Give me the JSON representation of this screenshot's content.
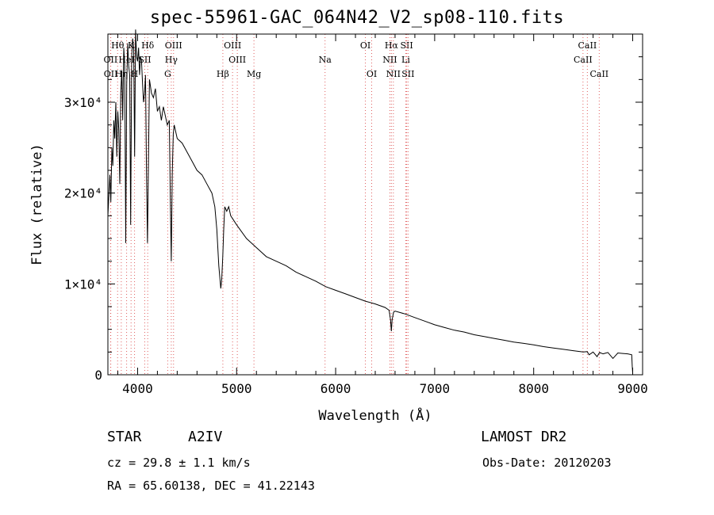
{
  "footer": {
    "object_type": "STAR",
    "object_class": "A2IV",
    "survey": "LAMOST DR2",
    "redshift": "cz = 29.8 ± 1.1 km/s",
    "obs_date": "Obs-Date: 20120203",
    "coords": "RA =  65.60138, DEC =  41.22143"
  },
  "colors": {
    "line_marker": "#e06060",
    "spectrum": "#000000",
    "axes": "#000000"
  },
  "chart_data": {
    "type": "line",
    "title": "spec-55961-GAC_064N42_V2_sp08-110.fits",
    "xlabel": "Wavelength (Å)",
    "ylabel": "Flux (relative)",
    "xlim": [
      3700,
      9100
    ],
    "ylim": [
      0,
      37500
    ],
    "x_ticks": [
      4000,
      5000,
      6000,
      7000,
      8000,
      9000
    ],
    "x_tick_labels": [
      "4000",
      "5000",
      "6000",
      "7000",
      "8000",
      "9000"
    ],
    "y_ticks": [
      0,
      10000,
      20000,
      30000
    ],
    "y_tick_labels": [
      "0",
      "1×10⁴",
      "2×10⁴",
      "3×10⁴"
    ],
    "grid": false,
    "series": [
      {
        "x": [
          3700,
          3720,
          3730,
          3740,
          3750,
          3760,
          3770,
          3780,
          3790,
          3800,
          3810,
          3820,
          3830,
          3840,
          3850,
          3860,
          3870,
          3880,
          3890,
          3900,
          3910,
          3920,
          3930,
          3940,
          3950,
          3960,
          3970,
          3980,
          3990,
          4000,
          4010,
          4020,
          4030,
          4040,
          4050,
          4060,
          4070,
          4080,
          4090,
          4100,
          4110,
          4120,
          4140,
          4160,
          4180,
          4200,
          4220,
          4240,
          4260,
          4280,
          4300,
          4320,
          4330,
          4340,
          4350,
          4360,
          4370,
          4400,
          4450,
          4500,
          4550,
          4600,
          4650,
          4700,
          4750,
          4780,
          4800,
          4820,
          4840,
          4850,
          4860,
          4870,
          4880,
          4900,
          4920,
          4940,
          5000,
          5100,
          5200,
          5300,
          5400,
          5500,
          5600,
          5700,
          5800,
          5900,
          6000,
          6100,
          6200,
          6300,
          6400,
          6500,
          6540,
          6555,
          6563,
          6570,
          6585,
          6600,
          6700,
          6800,
          6900,
          7000,
          7100,
          7200,
          7300,
          7400,
          7500,
          7600,
          7700,
          7800,
          7900,
          8000,
          8100,
          8200,
          8300,
          8400,
          8500,
          8540,
          8560,
          8600,
          8640,
          8665,
          8700,
          8750,
          8800,
          8850,
          8900,
          8950,
          8990,
          8995,
          9000
        ],
        "y": [
          17500,
          22000,
          19000,
          25000,
          23000,
          28000,
          26000,
          30000,
          24000,
          29000,
          27000,
          21000,
          31000,
          33500,
          28000,
          36000,
          34000,
          14500,
          32000,
          36500,
          34000,
          33000,
          16500,
          35000,
          37000,
          36000,
          24000,
          38000,
          35000,
          34500,
          36000,
          33000,
          35000,
          34500,
          32000,
          30000,
          31000,
          33000,
          22000,
          14500,
          24000,
          32500,
          31000,
          30500,
          31500,
          29000,
          29500,
          28000,
          29500,
          28500,
          27500,
          28000,
          20000,
          12500,
          22000,
          26500,
          27500,
          26000,
          25500,
          24500,
          23500,
          22500,
          22000,
          21000,
          20000,
          18500,
          16000,
          12000,
          9500,
          10500,
          13000,
          16000,
          18500,
          18000,
          18500,
          17500,
          16500,
          15000,
          14000,
          13000,
          12500,
          12000,
          11300,
          10800,
          10300,
          9700,
          9300,
          8900,
          8500,
          8100,
          7800,
          7400,
          7100,
          6000,
          4800,
          6000,
          6900,
          7000,
          6700,
          6300,
          5900,
          5500,
          5200,
          4900,
          4700,
          4400,
          4200,
          4000,
          3800,
          3600,
          3450,
          3300,
          3100,
          2950,
          2800,
          2650,
          2500,
          2550,
          2200,
          2500,
          2000,
          2450,
          2300,
          2450,
          1800,
          2400,
          2350,
          2300,
          2200,
          1000,
          200
        ]
      }
    ],
    "line_markers": [
      {
        "name": "Hθ",
        "wavelength": 3798,
        "row": 0
      },
      {
        "name": "K",
        "wavelength": 3934,
        "row": 0
      },
      {
        "name": "Hδ",
        "wavelength": 4102,
        "row": 0
      },
      {
        "name": "OIII",
        "wavelength": 4363,
        "row": 0
      },
      {
        "name": "OIII",
        "wavelength": 4959,
        "row": 0
      },
      {
        "name": "OI",
        "wavelength": 6300,
        "row": 0
      },
      {
        "name": "Hα",
        "wavelength": 6563,
        "row": 0
      },
      {
        "name": "SII",
        "wavelength": 6717,
        "row": 0
      },
      {
        "name": "CaII",
        "wavelength": 8542,
        "row": 0
      },
      {
        "name": "OII",
        "wavelength": 3727,
        "row": 1
      },
      {
        "name": "HeI",
        "wavelength": 3889,
        "row": 1
      },
      {
        "name": "SII",
        "wavelength": 4072,
        "row": 1
      },
      {
        "name": "Hγ",
        "wavelength": 4340,
        "row": 1
      },
      {
        "name": "OIII",
        "wavelength": 5007,
        "row": 1
      },
      {
        "name": "Na",
        "wavelength": 5893,
        "row": 1
      },
      {
        "name": "NII",
        "wavelength": 6548,
        "row": 1
      },
      {
        "name": "Li",
        "wavelength": 6708,
        "row": 1
      },
      {
        "name": "CaII",
        "wavelength": 8498,
        "row": 1
      },
      {
        "name": "OII",
        "wavelength": 3729,
        "row": 2
      },
      {
        "name": "Hη",
        "wavelength": 3835,
        "row": 2
      },
      {
        "name": "H",
        "wavelength": 3969,
        "row": 2
      },
      {
        "name": "G",
        "wavelength": 4304,
        "row": 2
      },
      {
        "name": "Hβ",
        "wavelength": 4861,
        "row": 2
      },
      {
        "name": "Mg",
        "wavelength": 5175,
        "row": 2
      },
      {
        "name": "OI",
        "wavelength": 6364,
        "row": 2
      },
      {
        "name": "NII",
        "wavelength": 6583,
        "row": 2
      },
      {
        "name": "SII",
        "wavelength": 6731,
        "row": 2
      },
      {
        "name": "CaII",
        "wavelength": 8662,
        "row": 2
      }
    ]
  }
}
